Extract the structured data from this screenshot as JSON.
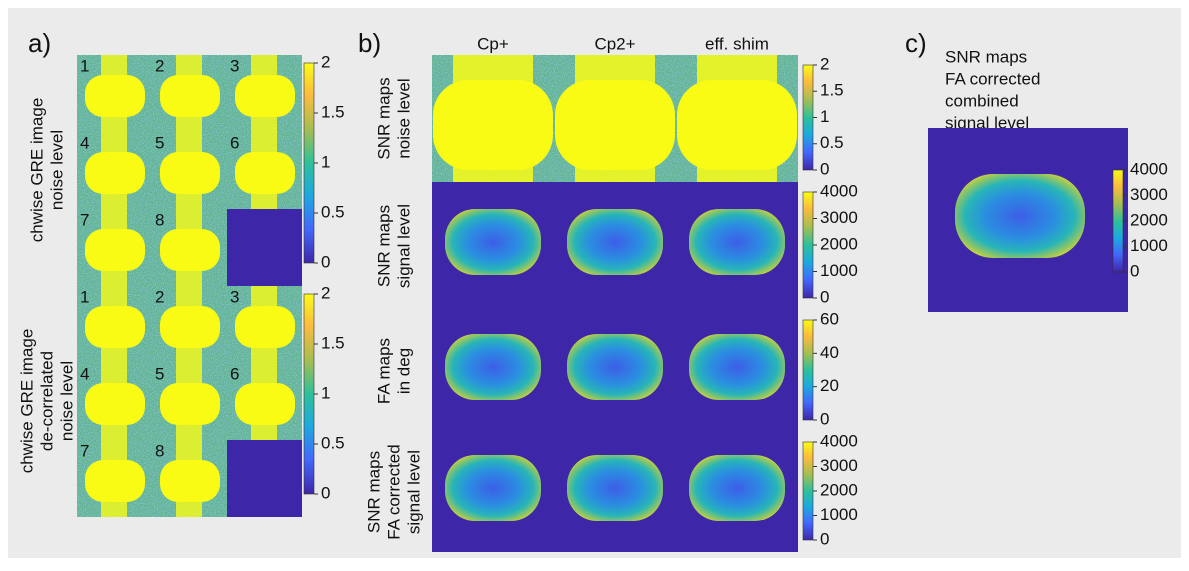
{
  "panels": {
    "a": {
      "label": "a)",
      "tiles": [
        "1",
        "2",
        "3",
        "4",
        "5",
        "6",
        "7",
        "8"
      ],
      "rows": [
        {
          "ylabel": [
            "chwise GRE image",
            "noise level"
          ],
          "colorbar_ticks": [
            2,
            1.5,
            1,
            0.5,
            0
          ]
        },
        {
          "ylabel": [
            "chwise GRE image",
            "de-correlated",
            "noise level"
          ],
          "colorbar_ticks": [
            2,
            1.5,
            1,
            0.5,
            0
          ]
        }
      ]
    },
    "b": {
      "label": "b)",
      "columns": [
        "Cp+",
        "Cp2+",
        "eff. shim"
      ],
      "rows": [
        {
          "ylabel": [
            "SNR maps",
            "noise level"
          ],
          "colorbar_ticks": [
            2,
            1.5,
            1,
            0.5,
            0
          ]
        },
        {
          "ylabel": [
            "SNR maps",
            "signal level"
          ],
          "colorbar_ticks": [
            4000,
            3000,
            2000,
            1000,
            0
          ]
        },
        {
          "ylabel": [
            "FA maps",
            "in deg"
          ],
          "colorbar_ticks": [
            60,
            40,
            20,
            0
          ]
        },
        {
          "ylabel": [
            "SNR maps",
            "FA corrected",
            "signal level"
          ],
          "colorbar_ticks": [
            4000,
            3000,
            2000,
            1000,
            0
          ]
        }
      ]
    },
    "c": {
      "label": "c)",
      "title": [
        "SNR maps",
        "FA corrected",
        "combined",
        "signal level"
      ],
      "colorbar_ticks": [
        4000,
        3000,
        2000,
        1000,
        0
      ]
    }
  }
}
